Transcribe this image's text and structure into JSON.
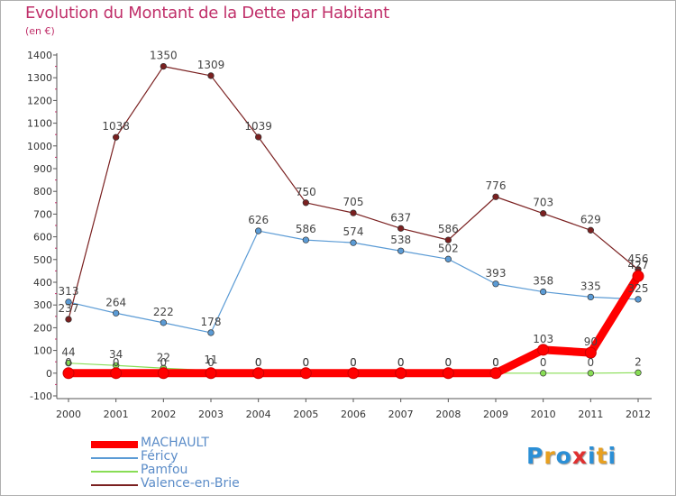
{
  "title": "Evolution du Montant de la Dette par Habitant",
  "unit_label": "(en €)",
  "logo": {
    "text": "Proxiti",
    "colors": [
      "#2b8fd6",
      "#e8a020",
      "#2b8fd6",
      "#e03030",
      "#2b8fd6",
      "#e8a020",
      "#2b8fd6"
    ]
  },
  "chart_data": {
    "type": "line",
    "title": "Evolution du Montant de la Dette par Habitant",
    "ylabel": "(en €)",
    "ylim": [
      -100,
      1400
    ],
    "yticks": [
      -100,
      0,
      100,
      200,
      300,
      400,
      500,
      600,
      700,
      800,
      900,
      1000,
      1100,
      1200,
      1300,
      1400
    ],
    "x": [
      "2000",
      "2001",
      "2002",
      "2003",
      "2004",
      "2005",
      "2006",
      "2007",
      "2008",
      "2009",
      "2010",
      "2011",
      "2012"
    ],
    "grid": false,
    "legend_position": "bottom-left",
    "series": [
      {
        "name": "MACHAULT",
        "color": "#ff0000",
        "values": [
          0,
          0,
          0,
          0,
          0,
          0,
          0,
          0,
          0,
          0,
          103,
          90,
          427
        ]
      },
      {
        "name": "Féricy",
        "color": "#5b9bd5",
        "values": [
          313,
          264,
          222,
          178,
          626,
          586,
          574,
          538,
          502,
          393,
          358,
          335,
          325
        ]
      },
      {
        "name": "Pamfou",
        "color": "#88dd55",
        "values": [
          44,
          34,
          22,
          11,
          0,
          0,
          0,
          0,
          0,
          0,
          0,
          0,
          2
        ]
      },
      {
        "name": "Valence-en-Brie",
        "color": "#7a2020",
        "values": [
          237,
          1038,
          1350,
          1309,
          1039,
          750,
          705,
          637,
          586,
          776,
          703,
          629,
          456
        ]
      }
    ]
  }
}
